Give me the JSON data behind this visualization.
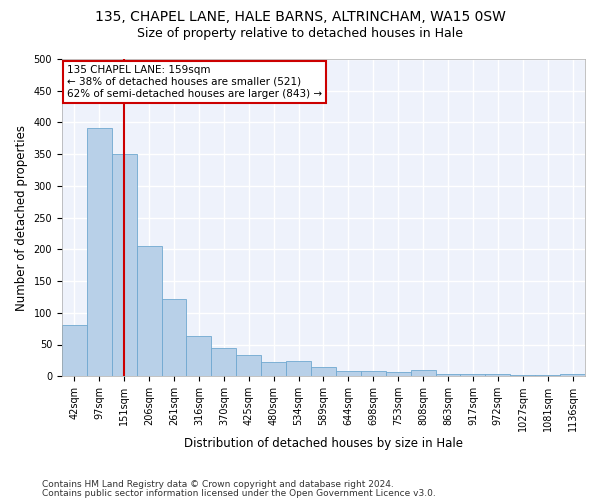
{
  "title1": "135, CHAPEL LANE, HALE BARNS, ALTRINCHAM, WA15 0SW",
  "title2": "Size of property relative to detached houses in Hale",
  "xlabel": "Distribution of detached houses by size in Hale",
  "ylabel": "Number of detached properties",
  "categories": [
    "42sqm",
    "97sqm",
    "151sqm",
    "206sqm",
    "261sqm",
    "316sqm",
    "370sqm",
    "425sqm",
    "480sqm",
    "534sqm",
    "589sqm",
    "644sqm",
    "698sqm",
    "753sqm",
    "808sqm",
    "863sqm",
    "917sqm",
    "972sqm",
    "1027sqm",
    "1081sqm",
    "1136sqm"
  ],
  "values": [
    80,
    392,
    350,
    205,
    122,
    64,
    45,
    33,
    22,
    24,
    14,
    9,
    9,
    6,
    10,
    4,
    4,
    3,
    2,
    2,
    4
  ],
  "bar_color": "#b8d0e8",
  "bar_edge_color": "#6fa8d0",
  "vline_x": 2,
  "vline_color": "#cc0000",
  "annotation_text": "135 CHAPEL LANE: 159sqm\n← 38% of detached houses are smaller (521)\n62% of semi-detached houses are larger (843) →",
  "annotation_box_color": "white",
  "annotation_box_edge": "#cc0000",
  "ylim": [
    0,
    500
  ],
  "yticks": [
    0,
    50,
    100,
    150,
    200,
    250,
    300,
    350,
    400,
    450,
    500
  ],
  "footer1": "Contains HM Land Registry data © Crown copyright and database right 2024.",
  "footer2": "Contains public sector information licensed under the Open Government Licence v3.0.",
  "bg_color": "#ffffff",
  "plot_bg_color": "#eef2fb",
  "grid_color": "#ffffff",
  "title1_fontsize": 10,
  "title2_fontsize": 9,
  "axis_label_fontsize": 8.5,
  "tick_fontsize": 7,
  "footer_fontsize": 6.5,
  "annotation_fontsize": 7.5
}
